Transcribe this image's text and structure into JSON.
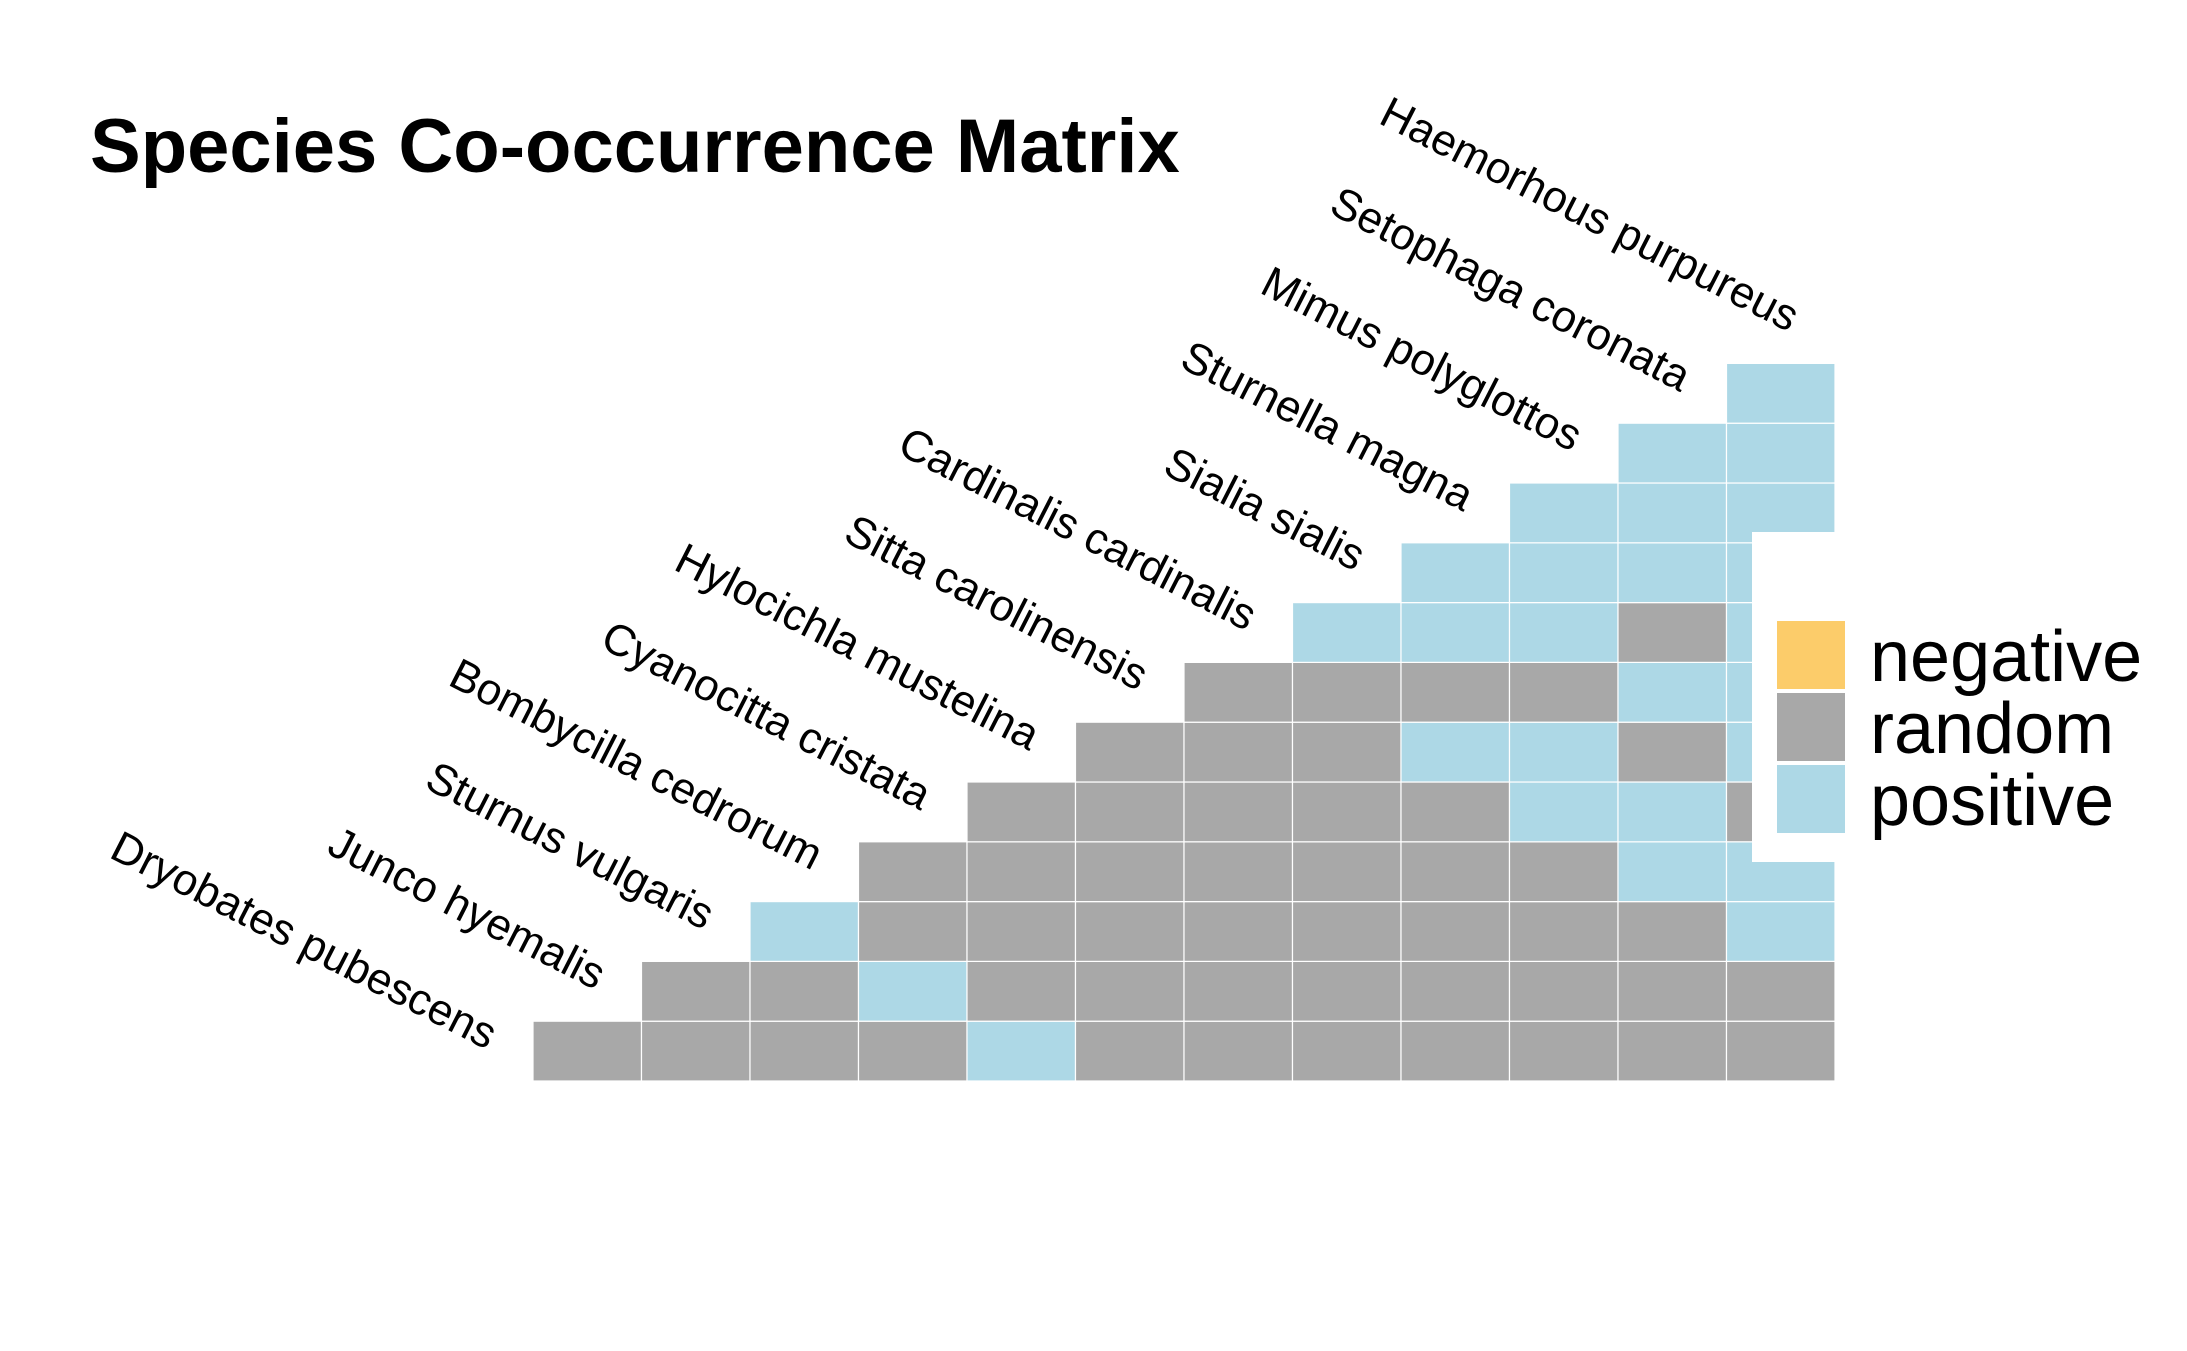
{
  "chart_data": {
    "type": "heatmap",
    "title": "Species Co-occurrence Matrix",
    "species": [
      "Dryobates pubescens",
      "Junco hyemalis",
      "Sturnus vulgaris",
      "Bombycilla cedrorum",
      "Cyanocitta cristata",
      "Hylocichla mustelina",
      "Sitta carolinensis",
      "Cardinalis cardinalis",
      "Sialia sialis",
      "Sturnella magna",
      "Mimus polyglottos",
      "Setophaga coronata",
      "Haemorhous purpureus"
    ],
    "matrix": [
      [
        "random",
        "random",
        "random",
        "random",
        "positive",
        "random",
        "random",
        "random",
        "random",
        "random",
        "random",
        "random"
      ],
      [
        "random",
        "random",
        "positive",
        "random",
        "random",
        "random",
        "random",
        "random",
        "random",
        "random",
        "random"
      ],
      [
        "positive",
        "random",
        "random",
        "random",
        "random",
        "random",
        "random",
        "random",
        "random",
        "positive"
      ],
      [
        "random",
        "random",
        "random",
        "random",
        "random",
        "random",
        "random",
        "positive",
        "positive"
      ],
      [
        "random",
        "random",
        "random",
        "random",
        "random",
        "positive",
        "positive",
        "random"
      ],
      [
        "random",
        "random",
        "random",
        "positive",
        "positive",
        "random",
        "positive"
      ],
      [
        "random",
        "random",
        "random",
        "random",
        "positive",
        "positive"
      ],
      [
        "positive",
        "positive",
        "positive",
        "random",
        "positive"
      ],
      [
        "positive",
        "positive",
        "positive",
        "positive"
      ],
      [
        "positive",
        "positive",
        "positive"
      ],
      [
        "positive",
        "positive"
      ],
      [
        "positive"
      ]
    ],
    "legend": {
      "position": "right",
      "entries": [
        {
          "label": "negative",
          "color": "#FCCC6A"
        },
        {
          "label": "random",
          "color": "#A8A8A8"
        },
        {
          "label": "positive",
          "color": "#ADD8E6"
        }
      ]
    },
    "grid": false
  }
}
